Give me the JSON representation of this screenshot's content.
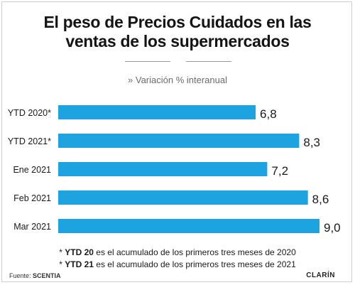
{
  "title_lines": [
    "El peso de Precios Cuidados en las",
    "ventas de los supermercados"
  ],
  "subtitle": "» Variación % interanual",
  "chart_data": {
    "type": "bar",
    "orientation": "horizontal",
    "categories": [
      "YTD 2020*",
      "YTD 2021*",
      "Ene 2021",
      "Feb 2021",
      "Mar 2021"
    ],
    "values": [
      6.8,
      8.3,
      7.2,
      8.6,
      9.0
    ],
    "value_labels": [
      "6,8",
      "8,3",
      "7,2",
      "8,6",
      "9,0"
    ],
    "xlim": [
      0,
      9.0
    ],
    "bar_color": "#1ca3e0",
    "grid": false,
    "legend": "none"
  },
  "footnotes": [
    {
      "prefix": "* ",
      "bold": "YTD 20",
      "rest": " es el acumulado de los primeros tres meses de 2020"
    },
    {
      "prefix": "* ",
      "bold": "YTD 21",
      "rest": " es el acumulado de los primeros tres meses de 2021"
    }
  ],
  "source": {
    "label": "Fuente: ",
    "name": "SCENTIA"
  },
  "brand": "CLARÍN"
}
